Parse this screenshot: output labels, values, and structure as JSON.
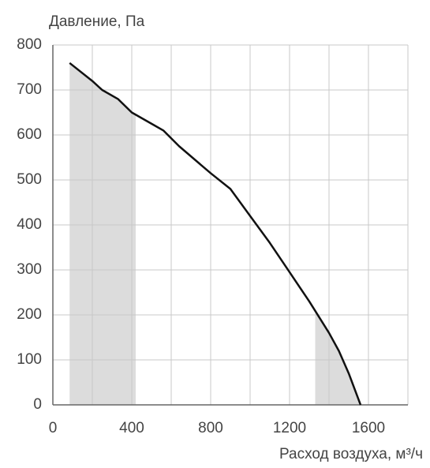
{
  "chart_data": {
    "type": "line",
    "y_label": "Давление, Па",
    "x_label": "Расход воздуха, м³/ч",
    "x": [
      85,
      200,
      250,
      330,
      400,
      500,
      560,
      640,
      800,
      900,
      1000,
      1100,
      1200,
      1300,
      1400,
      1450,
      1500,
      1560
    ],
    "values": [
      760,
      720,
      700,
      680,
      650,
      625,
      610,
      575,
      515,
      480,
      420,
      360,
      295,
      230,
      160,
      120,
      70,
      0
    ],
    "color": "#111111",
    "shaded_ranges": [
      [
        80,
        420
      ],
      [
        1330,
        1570
      ]
    ],
    "shade_color": "#dcdcdc",
    "xlim": [
      0,
      1800
    ],
    "xticks": [
      0,
      400,
      800,
      1200,
      1600
    ],
    "xminor": [
      200,
      600,
      1000,
      1400,
      1800
    ],
    "ylim": [
      0,
      800
    ],
    "yticks": [
      0,
      100,
      200,
      300,
      400,
      500,
      600,
      700,
      800
    ],
    "grid": true
  }
}
